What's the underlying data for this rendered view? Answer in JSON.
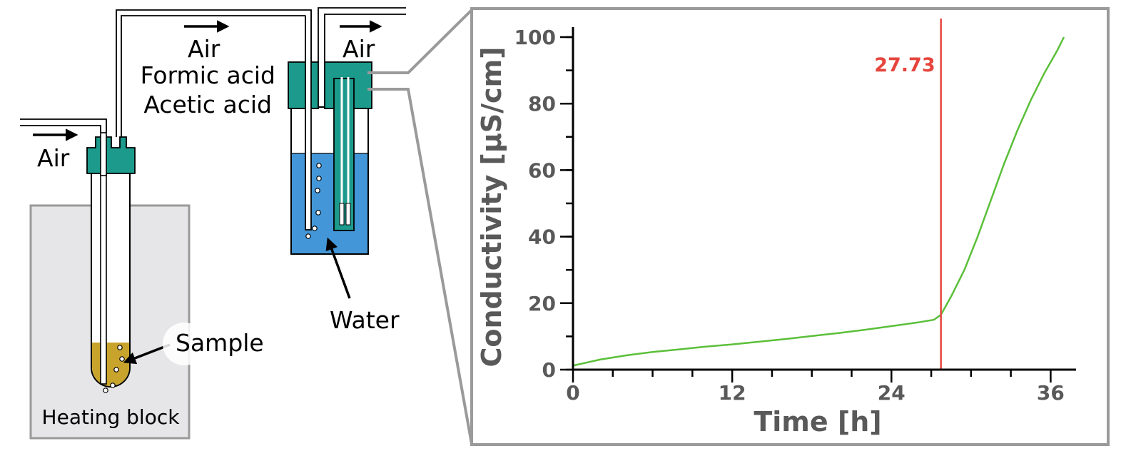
{
  "diagram": {
    "labels": {
      "air_inlet": "Air",
      "air_mid": "Air",
      "air_outlet": "Air",
      "formic": "Formic acid",
      "acetic": "Acetic acid",
      "water": "Water",
      "sample": "Sample",
      "heating_block": "Heating block"
    },
    "colors": {
      "teal": "#1c9a8c",
      "water": "#4396d7",
      "sample": "#c9a42c",
      "block": "#e6e6e8",
      "frame": "#9a9a9a"
    }
  },
  "chart_data": {
    "type": "line",
    "xlabel": "Time [h]",
    "ylabel": "Conductivity [µS/cm]",
    "xlim": [
      0,
      37
    ],
    "ylim": [
      0,
      100
    ],
    "x_ticks": [
      0,
      12,
      24,
      36
    ],
    "y_ticks": [
      0,
      20,
      40,
      60,
      80,
      100
    ],
    "marker": {
      "x": 27.73,
      "label": "27.73",
      "color": "#e5453d"
    },
    "series": [
      {
        "color": "#5bbf3a",
        "x": [
          0,
          2,
          4,
          6,
          8,
          10,
          12,
          14,
          16,
          18,
          20,
          22,
          24,
          26,
          27.2,
          27.73,
          28.5,
          29.5,
          30.5,
          31.5,
          32.5,
          33.5,
          34.5,
          35.5,
          36.5,
          37
        ],
        "y": [
          1.2,
          3.0,
          4.3,
          5.3,
          6.1,
          6.9,
          7.6,
          8.4,
          9.2,
          10.1,
          11.0,
          12.0,
          13.1,
          14.2,
          15.0,
          16.5,
          22.0,
          30.0,
          40.0,
          51.0,
          62.0,
          72.0,
          81.0,
          89.0,
          96.0,
          100.0
        ]
      }
    ]
  }
}
